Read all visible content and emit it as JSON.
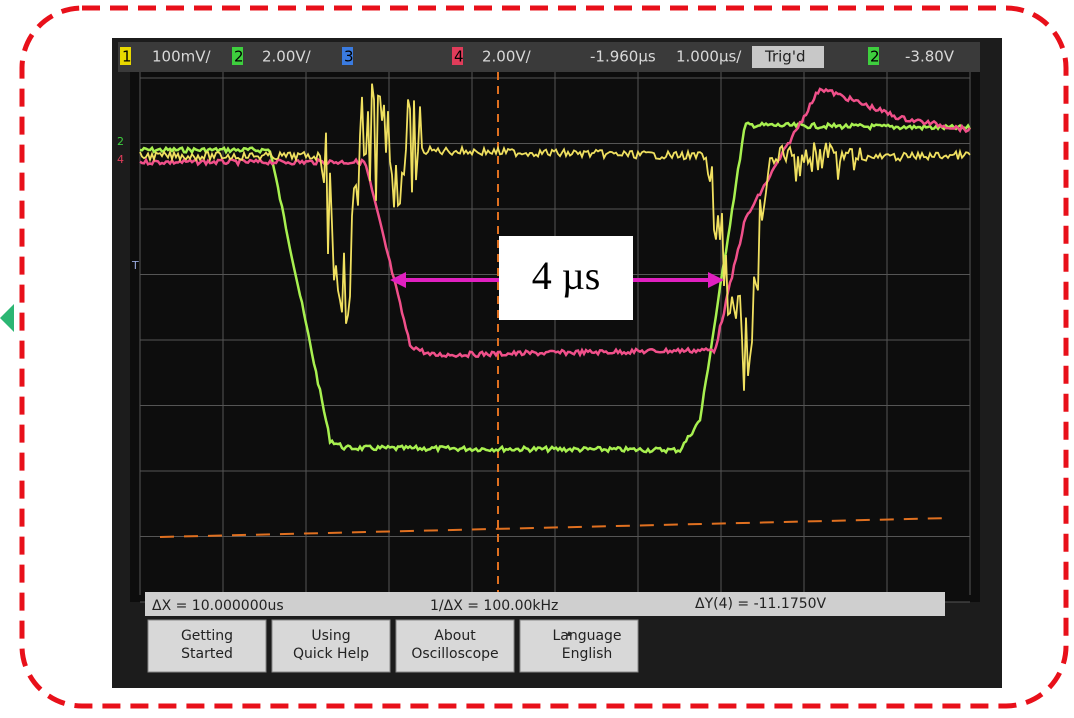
{
  "top_bar": {
    "ch1": "1",
    "ch1_scale": "100mV/",
    "ch2": "2",
    "ch2_scale": "2.00V/",
    "ch3": "3",
    "ch4": "4",
    "ch4_scale": "2.00V/",
    "delay": "-1.960µs",
    "timebase": "1.000µs/",
    "trigger_status": "Trig'd",
    "trigger_source": "2",
    "trigger_level": "-3.80V"
  },
  "markers": {
    "ch2": "2",
    "ch4": "4",
    "trigger": "T"
  },
  "measurements": [
    "ΔX = 10.000000us",
    "1/ΔX = 100.00kHz",
    "ΔY(4) = -11.1750V"
  ],
  "softkeys": [
    {
      "line1": "Getting",
      "line2": "Started"
    },
    {
      "line1": "Using",
      "line2": "Quick Help"
    },
    {
      "line1": "About",
      "line2": "Oscilloscope"
    },
    {
      "line1": "Language",
      "line2": "English"
    }
  ],
  "annotation": "4 µs"
}
